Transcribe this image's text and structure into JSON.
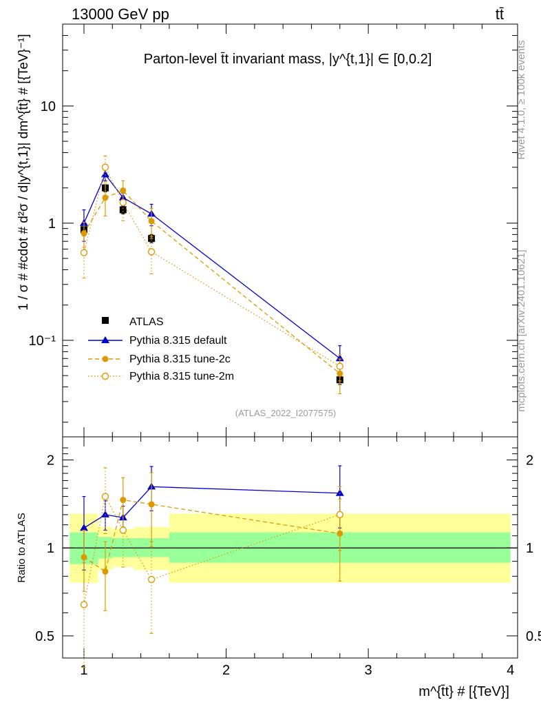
{
  "header": {
    "left": "13000 GeV pp",
    "right": "tt̄"
  },
  "side_labels": {
    "rivet": "Rivet 4.1.0, ≥ 100k events",
    "mcplots": "mcplots.cern.ch [arXiv:2401.10621]"
  },
  "chart_data": [
    {
      "type": "line",
      "panel": "main",
      "title": "Parton-level t̄t invariant mass, |y^{t,1}| ∈ [0,0.2]",
      "ylabel": "1 / σ # #cdot # d²σ / d|y^{t,1}| dm^{t̄t} # [{TeV}⁻¹]",
      "yscale": "log",
      "ylim": [
        0.015,
        50
      ],
      "xlim": [
        0.85,
        4.05
      ],
      "y_tick_labels": [
        "10⁻¹",
        "1",
        "10"
      ],
      "watermark": "(ATLAS_2022_I2077575)",
      "x": [
        1.0,
        1.15,
        1.275,
        1.475,
        2.8
      ],
      "series": [
        {
          "name": "ATLAS",
          "style": "square",
          "color": "#000000",
          "values": [
            0.88,
            2.0,
            1.3,
            0.74,
            0.046
          ],
          "xerr": [
            0.1,
            0.05,
            0.075,
            0.125,
            1.2
          ],
          "yerr": [
            0.1,
            0.15,
            0.1,
            0.06,
            0.004
          ]
        },
        {
          "name": "Pythia 8.315 default",
          "style": "triangle-line",
          "color": "#0000cc",
          "values": [
            1.0,
            2.6,
            1.65,
            1.2,
            0.07
          ],
          "yerr": [
            0.3,
            0.3,
            0.15,
            0.25,
            0.02
          ]
        },
        {
          "name": "Pythia 8.315 tune-2c",
          "style": "filled-circle-dashed",
          "color": "#dd9900",
          "values": [
            0.82,
            1.65,
            1.9,
            1.04,
            0.052
          ],
          "yerr": [
            0.2,
            0.5,
            0.4,
            0.3,
            0.017
          ]
        },
        {
          "name": "Pythia 8.315 tune-2m",
          "style": "open-circle-dotted",
          "color": "#dd9900",
          "values": [
            0.56,
            3.0,
            1.5,
            0.57,
            0.06
          ],
          "yerr": [
            0.22,
            0.75,
            0.45,
            0.2,
            0.015
          ]
        }
      ]
    },
    {
      "type": "line",
      "panel": "ratio",
      "ylabel": "Ratio to ATLAS",
      "xlabel": "m^{t̄t} # [{TeV}]",
      "yscale": "log",
      "ylim": [
        0.42,
        2.4
      ],
      "xlim": [
        0.85,
        4.05
      ],
      "x_ticks": [
        1,
        2,
        3,
        4
      ],
      "x_tick_labels": [
        "1",
        "2",
        "3",
        "4"
      ],
      "y_ticks": [
        0.5,
        1,
        2
      ],
      "y_tick_labels": [
        "0.5",
        "1",
        "2"
      ],
      "bands": {
        "edges": [
          0.9,
          1.1,
          1.2,
          1.35,
          1.6,
          4.0
        ],
        "green_lo": [
          0.88,
          0.92,
          0.93,
          0.93,
          0.89
        ],
        "green_hi": [
          1.13,
          1.09,
          1.08,
          1.08,
          1.13
        ],
        "yellow_lo": [
          0.76,
          0.84,
          0.86,
          0.84,
          0.76
        ],
        "yellow_hi": [
          1.31,
          1.18,
          1.16,
          1.18,
          1.31
        ]
      },
      "x": [
        1.0,
        1.15,
        1.275,
        1.475,
        2.8
      ],
      "series": [
        {
          "name": "Pythia 8.315 default",
          "style": "triangle-line",
          "color": "#0000cc",
          "values": [
            1.17,
            1.3,
            1.27,
            1.62,
            1.54
          ],
          "yerr": [
            0.33,
            0.15,
            0.12,
            0.28,
            0.37
          ]
        },
        {
          "name": "Pythia 8.315 tune-2c",
          "style": "filled-circle-dashed",
          "color": "#dd9900",
          "values": [
            0.93,
            0.83,
            1.46,
            1.41,
            1.12
          ],
          "yerr": [
            0.22,
            0.22,
            0.28,
            0.4,
            0.35
          ]
        },
        {
          "name": "Pythia 8.315 tune-2m",
          "style": "open-circle-dotted",
          "color": "#dd9900",
          "values": [
            0.64,
            1.5,
            1.15,
            0.78,
            1.3
          ],
          "yerr": [
            0.25,
            0.38,
            0.29,
            0.27,
            0.32
          ]
        }
      ]
    }
  ]
}
